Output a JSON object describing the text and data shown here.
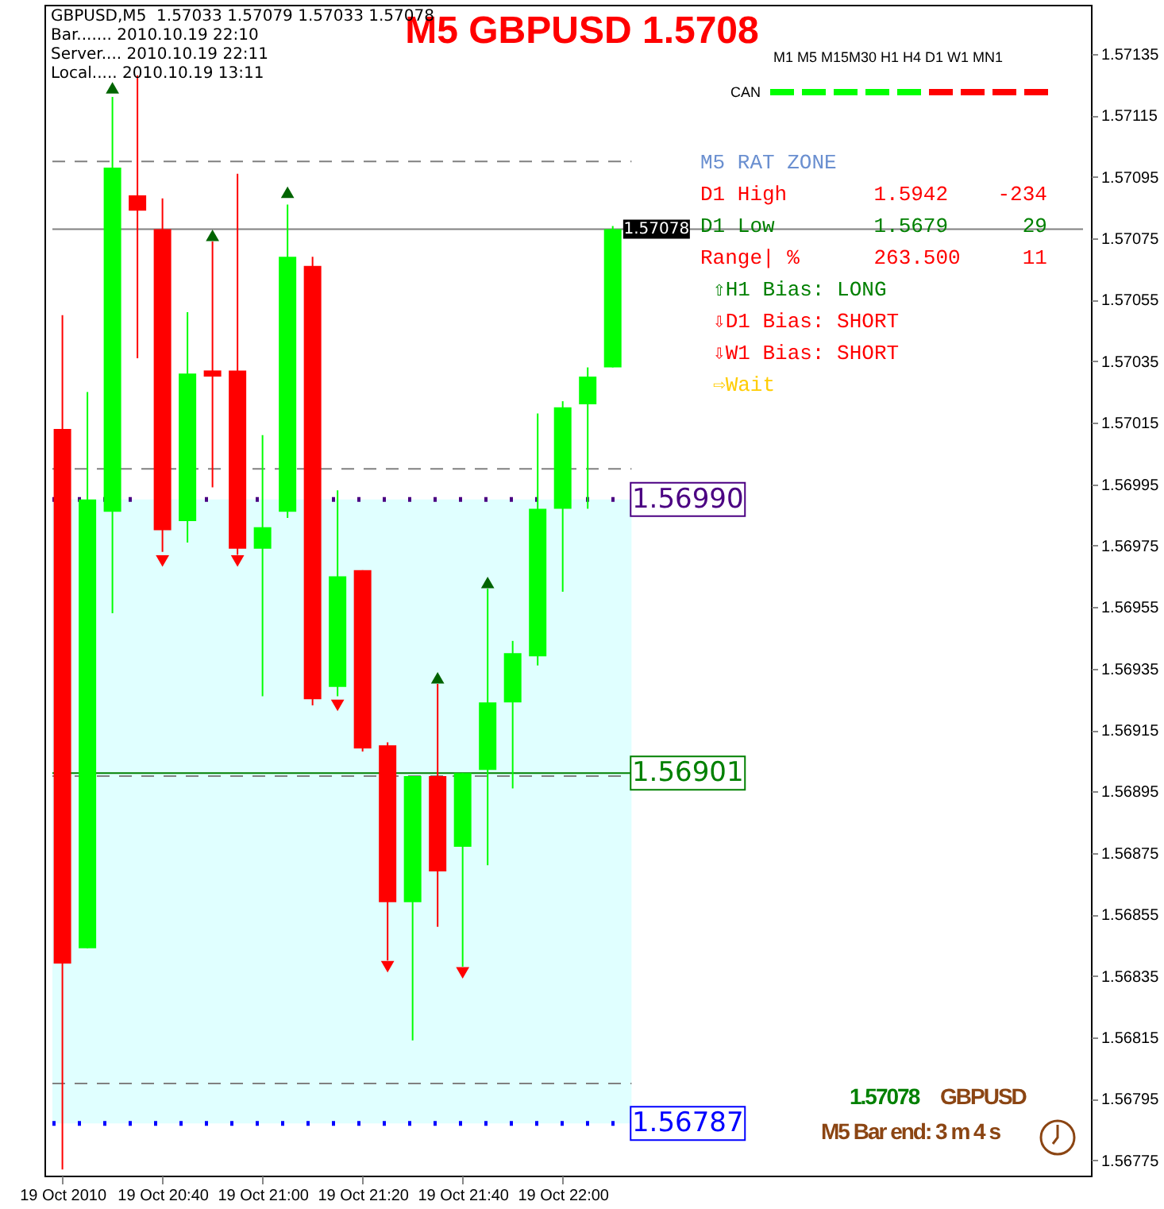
{
  "chart_data": {
    "type": "candlestick",
    "title": "M5 GBPUSD 1.5708",
    "x": [
      "2010-10-19T20:20",
      "2010-10-19T20:25",
      "2010-10-19T20:30",
      "2010-10-19T20:35",
      "2010-10-19T20:40",
      "2010-10-19T20:45",
      "2010-10-19T20:50",
      "2010-10-19T20:55",
      "2010-10-19T21:00",
      "2010-10-19T21:05",
      "2010-10-19T21:10",
      "2010-10-19T21:15",
      "2010-10-19T21:20",
      "2010-10-19T21:25",
      "2010-10-19T21:30",
      "2010-10-19T21:35",
      "2010-10-19T21:40",
      "2010-10-19T21:45",
      "2010-10-19T21:50",
      "2010-10-19T21:55",
      "2010-10-19T22:00",
      "2010-10-19T22:05",
      "2010-10-19T22:10"
    ],
    "ohlc": [
      [
        1.57013,
        1.5705,
        1.56772,
        1.56839
      ],
      [
        1.56844,
        1.57025,
        1.56844,
        1.5699
      ],
      [
        1.56986,
        1.57121,
        1.56953,
        1.57098
      ],
      [
        1.57089,
        1.57128,
        1.57036,
        1.57084
      ],
      [
        1.57078,
        1.57088,
        1.56973,
        1.5698
      ],
      [
        1.56983,
        1.57051,
        1.56976,
        1.57031
      ],
      [
        1.57032,
        1.57074,
        1.56994,
        1.5703
      ],
      [
        1.57032,
        1.57096,
        1.56972,
        1.56974
      ],
      [
        1.56974,
        1.57011,
        1.56926,
        1.56981
      ],
      [
        1.56986,
        1.57086,
        1.56984,
        1.57069
      ],
      [
        1.57066,
        1.57069,
        1.56923,
        1.56925
      ],
      [
        1.56929,
        1.56993,
        1.56926,
        1.56965
      ],
      [
        1.56967,
        1.56967,
        1.56908,
        1.56909
      ],
      [
        1.5691,
        1.56911,
        1.5684,
        1.56859
      ],
      [
        1.56859,
        1.569,
        1.56814,
        1.569
      ],
      [
        1.569,
        1.5693,
        1.56851,
        1.56869
      ],
      [
        1.56877,
        1.56901,
        1.56838,
        1.56901
      ],
      [
        1.56902,
        1.56961,
        1.56871,
        1.56924
      ],
      [
        1.56924,
        1.56944,
        1.56896,
        1.5694
      ],
      [
        1.56939,
        1.57018,
        1.56936,
        1.56987
      ],
      [
        1.56987,
        1.57022,
        1.5696,
        1.5702
      ],
      [
        1.57021,
        1.57033,
        1.56987,
        1.5703
      ],
      [
        1.57033,
        1.57079,
        1.57033,
        1.57078
      ]
    ],
    "colors": [
      "#ff0000",
      "#00ff00",
      "#00ff00",
      "#ff0000",
      "#ff0000",
      "#00ff00",
      "#ff0000",
      "#ff0000",
      "#00ff00",
      "#00ff00",
      "#ff0000",
      "#00ff00",
      "#ff0000",
      "#ff0000",
      "#00ff00",
      "#ff0000",
      "#00ff00",
      "#00ff00",
      "#00ff00",
      "#00ff00",
      "#00ff00",
      "#00ff00",
      "#00ff00"
    ],
    "series": [
      {
        "type": "scatter",
        "color": "#006400",
        "marker": "triangle",
        "x": [
          "2010-10-19T20:30",
          "2010-10-19T20:50",
          "2010-10-19T21:05",
          "2010-10-19T21:35",
          "2010-10-19T21:45"
        ],
        "values": [
          1.57124,
          1.57076,
          1.5709,
          1.56932,
          1.56963
        ]
      },
      {
        "type": "scatter",
        "color": "#ff0000",
        "marker": "triangle-down",
        "x": [
          "2010-10-19T20:40",
          "2010-10-19T20:55",
          "2010-10-19T21:15",
          "2010-10-19T21:25",
          "2010-10-19T21:40"
        ],
        "values": [
          1.5697,
          1.5697,
          1.56923,
          1.56838,
          1.56836
        ]
      }
    ],
    "xlim": [
      "2010-10-19T20:18",
      "2010-10-19T23:44"
    ],
    "xticks": [
      {
        "value": "2010-10-19T20:20",
        "label": "19 Oct 2010"
      },
      {
        "value": "2010-10-19T20:40",
        "label": "19 Oct 20:40"
      },
      {
        "value": "2010-10-19T21:00",
        "label": "19 Oct 21:00"
      },
      {
        "value": "2010-10-19T21:20",
        "label": "19 Oct 21:20"
      },
      {
        "value": "2010-10-19T21:40",
        "label": "19 Oct 21:40"
      },
      {
        "value": "2010-10-19T22:00",
        "label": "19 Oct 22:00"
      }
    ],
    "ylim": [
      1.5677,
      1.57151
    ],
    "yticks": [
      1.57135,
      1.57115,
      1.57095,
      1.57075,
      1.57055,
      1.57035,
      1.57015,
      1.56995,
      1.56975,
      1.56955,
      1.56935,
      1.56915,
      1.56895,
      1.56875,
      1.56855,
      1.56835,
      1.56815,
      1.56795,
      1.56775
    ],
    "bands": [
      {
        "axis": "y",
        "from": 1.56787,
        "to": 1.5699,
        "color": "#e0ffff"
      }
    ],
    "ref_lines": [
      {
        "axis": "y",
        "value": 1.571,
        "color": "#808080",
        "line_style": "dashed"
      },
      {
        "axis": "y",
        "value": 1.57,
        "color": "#808080",
        "line_style": "dashed"
      },
      {
        "axis": "y",
        "value": 1.569,
        "color": "#808080",
        "line_style": "dashed"
      },
      {
        "axis": "y",
        "value": 1.568,
        "color": "#808080",
        "line_style": "dashed"
      },
      {
        "axis": "y",
        "value": 1.57078,
        "label": "1.57078",
        "color": "#808080",
        "line_style": "solid"
      },
      {
        "axis": "y",
        "value": 1.5699,
        "label": "1.56990",
        "color": "#4b0082",
        "line_style": "dotted"
      },
      {
        "axis": "y",
        "value": 1.56901,
        "label": "1.56901",
        "color": "#008000",
        "line_style": "solid"
      },
      {
        "axis": "y",
        "value": 1.56787,
        "label": "1.56787",
        "color": "#0000ff",
        "line_style": "dotted"
      }
    ],
    "annotations": [
      "GBPUSD,M5  1.57033 1.57079 1.57033 1.57078",
      "Bar....... 2010.10.19 22:10",
      "Server.... 2010.10.19 22:11",
      "Local..... 2010.10.19 13:11",
      "M1 M5 M15M30 H1 H4 D1 W1 MN1",
      "CAN",
      "M5 RAT ZONE",
      "D1 High       1.5942    -234",
      "D1 Low        1.5679      29",
      "Range| %      263.500     11",
      "⇧H1 Bias: LONG",
      "⇩D1 Bias: SHORT",
      "⇩W1 Bias: SHORT",
      "⇨Wait",
      "1.57078",
      "GBPUSD",
      "M5 Bar end: 3 m 4 s"
    ]
  }
}
